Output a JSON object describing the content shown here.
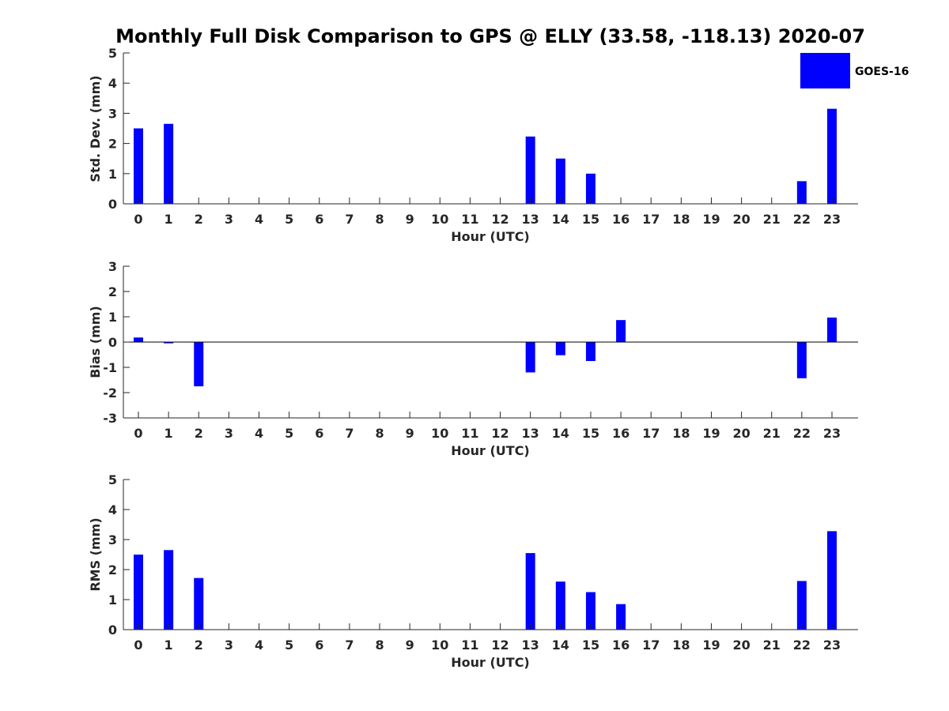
{
  "title": "Monthly Full Disk Comparison to GPS @ ELLY (33.58, -118.13) 2020-07",
  "legend": {
    "label": "GOES-16",
    "color": "#0000ff"
  },
  "bar_color": "#0000ff",
  "chart_data": [
    {
      "type": "bar",
      "name": "std-dev",
      "ylabel": "Std. Dev. (mm)",
      "xlabel": "Hour (UTC)",
      "ylim": [
        0,
        5
      ],
      "yticks": [
        0,
        1,
        2,
        3,
        4,
        5
      ],
      "categories": [
        "0",
        "1",
        "2",
        "3",
        "4",
        "5",
        "6",
        "7",
        "8",
        "9",
        "10",
        "11",
        "12",
        "13",
        "14",
        "15",
        "16",
        "17",
        "18",
        "19",
        "20",
        "21",
        "22",
        "23"
      ],
      "values": [
        2.5,
        2.65,
        0,
        0,
        0,
        0,
        0,
        0,
        0,
        0,
        0,
        0,
        0,
        2.23,
        1.5,
        1.0,
        0,
        0,
        0,
        0,
        0,
        0,
        0.75,
        3.15
      ]
    },
    {
      "type": "bar",
      "name": "bias",
      "ylabel": "Bias (mm)",
      "xlabel": "Hour (UTC)",
      "ylim": [
        -3,
        3
      ],
      "yticks": [
        -3,
        -2,
        -1,
        0,
        1,
        2,
        3
      ],
      "categories": [
        "0",
        "1",
        "2",
        "3",
        "4",
        "5",
        "6",
        "7",
        "8",
        "9",
        "10",
        "11",
        "12",
        "13",
        "14",
        "15",
        "16",
        "17",
        "18",
        "19",
        "20",
        "21",
        "22",
        "23"
      ],
      "values": [
        0.18,
        -0.05,
        -1.75,
        0,
        0,
        0,
        0,
        0,
        0,
        0,
        0,
        0,
        0,
        -1.2,
        -0.52,
        -0.75,
        0.87,
        0,
        0,
        0,
        0,
        0,
        -1.43,
        0.97
      ]
    },
    {
      "type": "bar",
      "name": "rms",
      "ylabel": "RMS (mm)",
      "xlabel": "Hour (UTC)",
      "ylim": [
        0,
        5
      ],
      "yticks": [
        0,
        1,
        2,
        3,
        4,
        5
      ],
      "categories": [
        "0",
        "1",
        "2",
        "3",
        "4",
        "5",
        "6",
        "7",
        "8",
        "9",
        "10",
        "11",
        "12",
        "13",
        "14",
        "15",
        "16",
        "17",
        "18",
        "19",
        "20",
        "21",
        "22",
        "23"
      ],
      "values": [
        2.5,
        2.65,
        1.72,
        0,
        0,
        0,
        0,
        0,
        0,
        0,
        0,
        0,
        0,
        2.55,
        1.6,
        1.25,
        0.85,
        0,
        0,
        0,
        0,
        0,
        1.62,
        3.28
      ]
    }
  ]
}
